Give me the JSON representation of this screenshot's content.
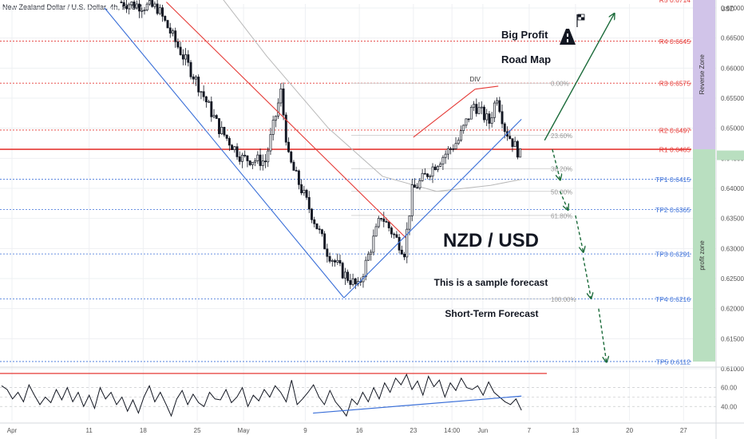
{
  "header": {
    "title": "New Zealand Dollar / U.S. Dollar, 4h, FXCM"
  },
  "colors": {
    "up": "#131722",
    "down": "#131722",
    "accent_red": "#e53935",
    "blue": "#3a6fd8",
    "green": "#1b6b3a",
    "reverse_zone": "#d1c4e9",
    "profit_zone": "#b9dfc0"
  },
  "icons": [
    "road-icon",
    "checkered-flag-icon"
  ],
  "annotations": {
    "big_profit": "Big Profit",
    "road_map": "Road Map",
    "pair": "NZD / USD",
    "sample": "This is a sample forecast",
    "short_term": "Short-Term Forecast",
    "div": "DIV",
    "reverse_zone": "Reverse Zone",
    "profit_zone": "profit zone"
  },
  "chart_data": [
    {
      "type": "candlestick",
      "title": "New Zealand Dollar / U.S. Dollar, 4h, FXCM",
      "y_unit": "USD",
      "ylim": [
        0.61,
        0.67
      ],
      "y_ticks": [
        "0.67000",
        "0.66500",
        "0.66000",
        "0.65500",
        "0.65000",
        "0.64500",
        "0.64000",
        "0.63500",
        "0.63000",
        "0.62500",
        "0.62000",
        "0.61500",
        "0.61000"
      ],
      "x_ticks": [
        "Apr",
        "11",
        "18",
        "25",
        "May",
        "9",
        "16",
        "23",
        "14:00",
        "Jun",
        "7",
        "13",
        "20",
        "27"
      ],
      "path_waypoints": [
        {
          "x": "Apr 15",
          "price": 0.671
        },
        {
          "x": "Apr 20",
          "price": 0.67
        },
        {
          "x": "Apr 25",
          "price": 0.658
        },
        {
          "x": "Apr 28",
          "price": 0.65
        },
        {
          "x": "May 1",
          "price": 0.645
        },
        {
          "x": "May 4",
          "price": 0.6445
        },
        {
          "x": "May 6",
          "price": 0.656
        },
        {
          "x": "May 7",
          "price": 0.645
        },
        {
          "x": "May 12",
          "price": 0.6295
        },
        {
          "x": "May 14",
          "price": 0.626
        },
        {
          "x": "May 16",
          "price": 0.6235
        },
        {
          "x": "May 18",
          "price": 0.6315
        },
        {
          "x": "May 19",
          "price": 0.6355
        },
        {
          "x": "May 22",
          "price": 0.6295
        },
        {
          "x": "May 23",
          "price": 0.6395
        },
        {
          "x": "May 26",
          "price": 0.644
        },
        {
          "x": "May 29",
          "price": 0.648
        },
        {
          "x": "May 31",
          "price": 0.654
        },
        {
          "x": "Jun 2",
          "price": 0.651
        },
        {
          "x": "Jun 3",
          "price": 0.6555
        },
        {
          "x": "Jun 4",
          "price": 0.65
        },
        {
          "x": "Jun 6",
          "price": 0.6455
        }
      ],
      "moving_average": [
        {
          "x": "May 4",
          "price": 0.662
        },
        {
          "x": "May 12",
          "price": 0.65
        },
        {
          "x": "May 19",
          "price": 0.642
        },
        {
          "x": "May 26",
          "price": 0.6395
        },
        {
          "x": "Jun 2",
          "price": 0.6405
        },
        {
          "x": "Jun 6",
          "price": 0.6415
        }
      ],
      "horizontal_levels": [
        {
          "label": "R5 0.6714",
          "price": 0.6714,
          "color": "#e53935"
        },
        {
          "label": "R4 0.6645",
          "price": 0.6645,
          "color": "#e53935"
        },
        {
          "label": "R3 0.6575",
          "price": 0.6575,
          "color": "#e53935"
        },
        {
          "label": "R2 0.6497",
          "price": 0.6497,
          "color": "#e53935"
        },
        {
          "label": "R1 0.6465",
          "price": 0.6465,
          "color": "#e53935"
        },
        {
          "label": "TP1 0.6415",
          "price": 0.6415,
          "color": "#3a6fd8"
        },
        {
          "label": "TP2 0.6365",
          "price": 0.6365,
          "color": "#3a6fd8"
        },
        {
          "label": "TP3 0.6291",
          "price": 0.6291,
          "color": "#3a6fd8"
        },
        {
          "label": "TP4 0.6216",
          "price": 0.6216,
          "color": "#3a6fd8"
        },
        {
          "label": "TP5 0.6112",
          "price": 0.6112,
          "color": "#3a6fd8"
        }
      ],
      "fibonacci": [
        {
          "label": "0.00%",
          "price": 0.6575
        },
        {
          "label": "23.60%",
          "price": 0.6488
        },
        {
          "label": "38.20%",
          "price": 0.6433
        },
        {
          "label": "50.00%",
          "price": 0.6395
        },
        {
          "label": "61.80%",
          "price": 0.6355
        },
        {
          "label": "100.00%",
          "price": 0.6216
        }
      ],
      "trendlines": [
        {
          "color": "#3a6fd8",
          "from": {
            "x": "Apr 13",
            "price": 0.67
          },
          "to": {
            "x": "May 14",
            "price": 0.6218
          }
        },
        {
          "color": "#e53935",
          "from": {
            "x": "Apr 21",
            "price": 0.671
          },
          "to": {
            "x": "May 22",
            "price": 0.6318
          }
        },
        {
          "color": "#3a6fd8",
          "from": {
            "x": "May 14",
            "price": 0.6218
          },
          "to": {
            "x": "Jun 6",
            "price": 0.6515
          }
        },
        {
          "color": "#e53935",
          "from": {
            "x": "May 23",
            "price": 0.6485
          },
          "to": {
            "x": "May 31",
            "price": 0.6565
          }
        },
        {
          "color": "#e53935",
          "from": {
            "x": "May 31",
            "price": 0.6565
          },
          "to": {
            "x": "Jun 3",
            "price": 0.657
          }
        }
      ],
      "forecast_arrows": [
        {
          "color": "#1b6b3a",
          "from": {
            "x": "Jun 9",
            "price": 0.648
          },
          "to": {
            "x": "Jun 18",
            "price": 0.669
          }
        }
      ],
      "forecast_dashed": [
        {
          "color": "#1b6b3a",
          "from": {
            "x": "Jun 10",
            "price": 0.6465
          },
          "to": {
            "x": "Jun 11",
            "price": 0.6415
          }
        },
        {
          "color": "#1b6b3a",
          "from": {
            "x": "Jun 11",
            "price": 0.6395
          },
          "to": {
            "x": "Jun 12",
            "price": 0.6365
          }
        },
        {
          "color": "#1b6b3a",
          "from": {
            "x": "Jun 13",
            "price": 0.6355
          },
          "to": {
            "x": "Jun 14",
            "price": 0.6295
          }
        },
        {
          "color": "#1b6b3a",
          "from": {
            "x": "Jun 14",
            "price": 0.6285
          },
          "to": {
            "x": "Jun 15",
            "price": 0.6218
          }
        },
        {
          "color": "#1b6b3a",
          "from": {
            "x": "Jun 16",
            "price": 0.62
          },
          "to": {
            "x": "Jun 17",
            "price": 0.6112
          }
        }
      ],
      "zones": [
        {
          "label": "Reverse Zone",
          "from_price": 0.6714,
          "to_price": 0.6465,
          "color": "#d1c4e9"
        },
        {
          "label": "profit zone",
          "from_price": 0.6465,
          "to_price": 0.6112,
          "color": "#b9dfc0"
        }
      ]
    },
    {
      "type": "line",
      "title": "",
      "y_ticks": [
        "60.00",
        "40.00"
      ],
      "ylim": [
        25,
        80
      ],
      "reference_lines": [
        75,
        60,
        50,
        40
      ],
      "series": [
        {
          "values": [
            62,
            58,
            48,
            55,
            45,
            63,
            52,
            42,
            50,
            44,
            58,
            47,
            60,
            45,
            55,
            40,
            52,
            38,
            60,
            48,
            55,
            42,
            50,
            35,
            47,
            33,
            50,
            62,
            45,
            55,
            43,
            30,
            48,
            57,
            42,
            53,
            44,
            40,
            55,
            48,
            47,
            58,
            44,
            50,
            60,
            40,
            52,
            46,
            58,
            50,
            62,
            55,
            45,
            68,
            42,
            48,
            55,
            63,
            50,
            42,
            57,
            45,
            38,
            30,
            48,
            42,
            55,
            45,
            60,
            48,
            65,
            55,
            70,
            63,
            74,
            58,
            67,
            52,
            72,
            61,
            68,
            50,
            65,
            57,
            70,
            60,
            58,
            62,
            52,
            66,
            55,
            50,
            45,
            42,
            48,
            36
          ]
        }
      ],
      "divergence_line": {
        "from": {
          "x": "May 10",
          "value": 33
        },
        "to": {
          "x": "Jun 6",
          "value": 51
        }
      }
    }
  ]
}
